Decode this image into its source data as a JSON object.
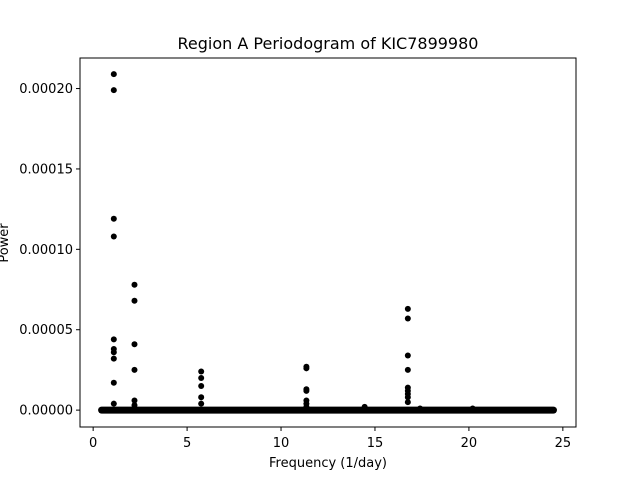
{
  "chart_data": {
    "type": "scatter",
    "title": "Region A  Periodogram of KIC7899980",
    "xlabel": "Frequency (1/day)",
    "ylabel": "Power",
    "xlim": [
      -0.7,
      25.7
    ],
    "ylim": [
      -1.05e-05,
      0.000219
    ],
    "xticks": [
      0,
      5,
      10,
      15,
      20,
      25
    ],
    "xtick_labels": [
      "0",
      "5",
      "10",
      "15",
      "20",
      "25"
    ],
    "yticks": [
      0.0,
      5e-05,
      0.0001,
      0.00015,
      0.0002
    ],
    "ytick_labels": [
      "0.00000",
      "0.00005",
      "0.00010",
      "0.00015",
      "0.00020"
    ],
    "grid": false,
    "marker_color": "#000000",
    "baseline": {
      "x_start": 0.45,
      "x_end": 24.5,
      "y": 0.0
    },
    "series": [
      {
        "x": [
          1.1,
          1.1,
          1.1,
          1.1,
          1.1,
          1.1,
          1.1,
          1.1,
          1.1,
          1.1,
          2.2,
          2.2,
          2.2,
          2.2,
          2.2,
          2.2,
          5.75,
          5.75,
          5.75,
          5.75,
          5.75,
          11.35,
          11.35,
          11.35,
          11.35,
          11.35,
          11.35,
          11.35,
          14.45,
          16.75,
          16.75,
          16.75,
          16.75,
          16.75,
          16.75,
          16.75,
          16.75,
          16.75,
          17.4,
          20.2
        ],
        "y": [
          0.000209,
          0.000199,
          0.000119,
          0.000108,
          4.4e-05,
          3.8e-05,
          3.6e-05,
          3.2e-05,
          1.7e-05,
          4e-06,
          7.8e-05,
          6.8e-05,
          4.1e-05,
          2.5e-05,
          6e-06,
          3e-06,
          2.4e-05,
          2e-05,
          1.5e-05,
          8e-06,
          4e-06,
          2.7e-05,
          2.6e-05,
          1.3e-05,
          1.2e-05,
          6e-06,
          4e-06,
          2e-06,
          2e-06,
          6.3e-05,
          5.7e-05,
          3.4e-05,
          2.5e-05,
          1.4e-05,
          1.2e-05,
          1e-05,
          8e-06,
          5e-06,
          1e-06,
          1e-06
        ]
      }
    ]
  }
}
